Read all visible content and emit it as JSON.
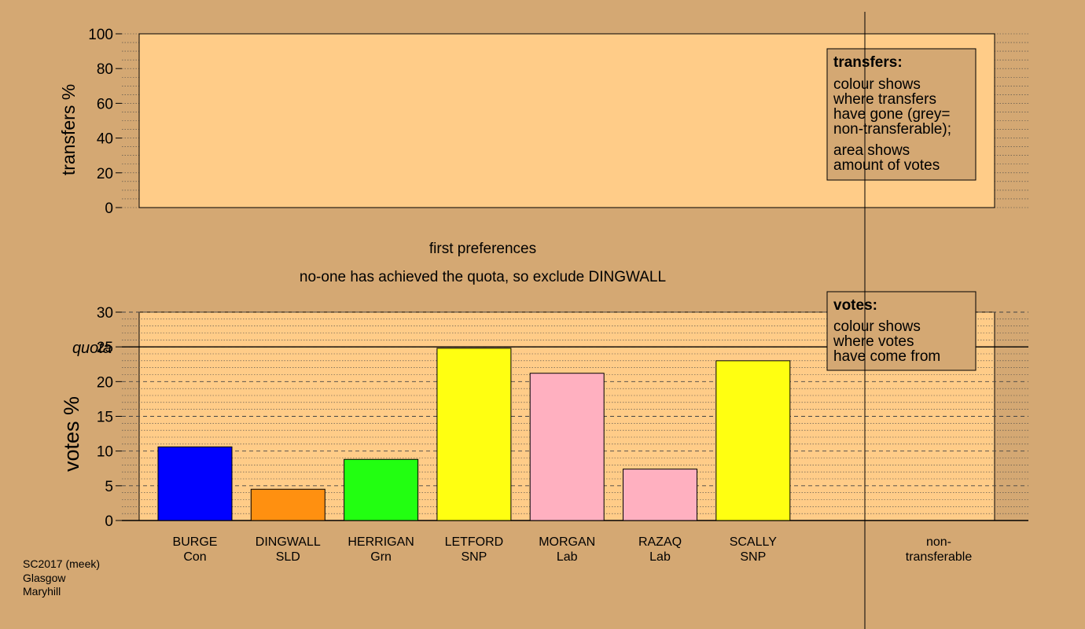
{
  "chart_data": [
    {
      "type": "bar",
      "ylabel": "transfers %",
      "ylim": [
        0,
        100
      ],
      "yticks": [
        0,
        20,
        40,
        60,
        80,
        100
      ],
      "minor_grid_step": 5,
      "plot_color": "#ffcc88",
      "grid": true,
      "series": [],
      "legend": {
        "position": "top-right",
        "title": "transfers:",
        "lines_a": [
          "colour shows",
          "where transfers",
          "have gone (grey=",
          "non-transferable);"
        ],
        "lines_b": [
          "area shows",
          "amount of votes"
        ]
      }
    },
    {
      "type": "bar",
      "title": "first preferences",
      "subtitle": "no-one has achieved the quota, so exclude DINGWALL",
      "ylabel": "votes %",
      "ylim": [
        0,
        30
      ],
      "yticks": [
        0,
        5,
        10,
        15,
        20,
        25,
        30
      ],
      "minor_grid_step": 1,
      "quota": 25,
      "quota_label": "quota",
      "grid": true,
      "categories": [
        {
          "name": "BURGE",
          "party": "Con"
        },
        {
          "name": "DINGWALL",
          "party": "SLD"
        },
        {
          "name": "HERRIGAN",
          "party": "Grn"
        },
        {
          "name": "LETFORD",
          "party": "SNP"
        },
        {
          "name": "MORGAN",
          "party": "Lab"
        },
        {
          "name": "RAZAQ",
          "party": "Lab"
        },
        {
          "name": "SCALLY",
          "party": "SNP"
        }
      ],
      "values": [
        10.6,
        4.5,
        8.8,
        24.8,
        21.2,
        7.4,
        23.0
      ],
      "colors": [
        "#0000ff",
        "#ff9010",
        "#22ff11",
        "#ffff11",
        "#ffb0c0",
        "#ffb0c0",
        "#ffff11"
      ],
      "nontransferable": {
        "line1": "non-",
        "line2": "transferable",
        "value": 0
      },
      "legend": {
        "position": "top-right",
        "title": "votes:",
        "lines": [
          "colour shows",
          "where votes",
          "have come from"
        ]
      }
    }
  ],
  "footer": {
    "line1": "SC2017 (meek)",
    "line2": "Glasgow",
    "line3": "Maryhill"
  }
}
